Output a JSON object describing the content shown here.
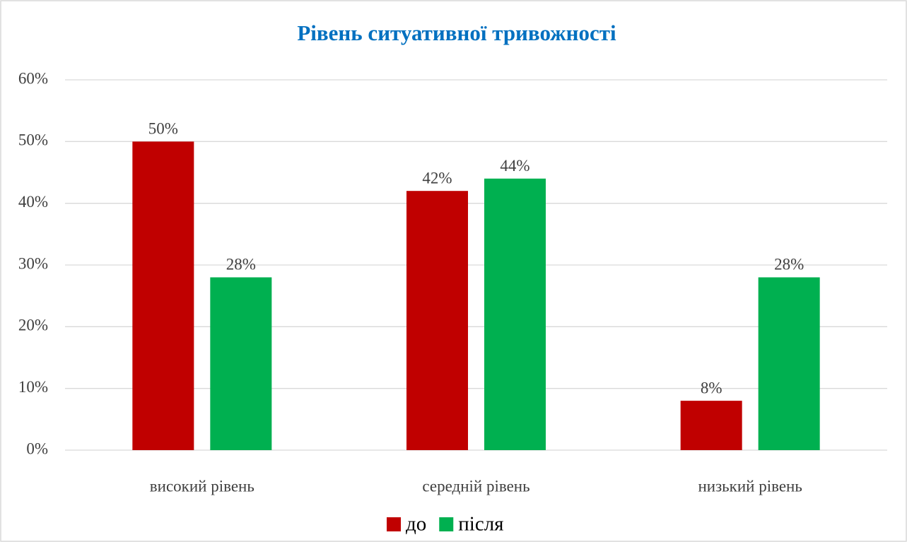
{
  "chart_data": {
    "type": "bar",
    "title": "Рівень ситуативної тривожності",
    "categories": [
      "високий рівень",
      "середній рівень",
      "низький рівень"
    ],
    "series": [
      {
        "name": "до",
        "color": "#c00000",
        "values": [
          50,
          42,
          8
        ],
        "value_labels": [
          "50%",
          "42%",
          "8%"
        ]
      },
      {
        "name": "після",
        "color": "#00b050",
        "values": [
          28,
          44,
          28
        ],
        "value_labels": [
          "28%",
          "44%",
          "28%"
        ]
      }
    ],
    "ylim": [
      0,
      60
    ],
    "yticks": [
      {
        "value": 0,
        "label": "0%"
      },
      {
        "value": 10,
        "label": "10%"
      },
      {
        "value": 20,
        "label": "20%"
      },
      {
        "value": 30,
        "label": "30%"
      },
      {
        "value": 40,
        "label": "40%"
      },
      {
        "value": 50,
        "label": "50%"
      },
      {
        "value": 60,
        "label": "60%"
      }
    ],
    "grid": true,
    "legend": "bottom"
  }
}
